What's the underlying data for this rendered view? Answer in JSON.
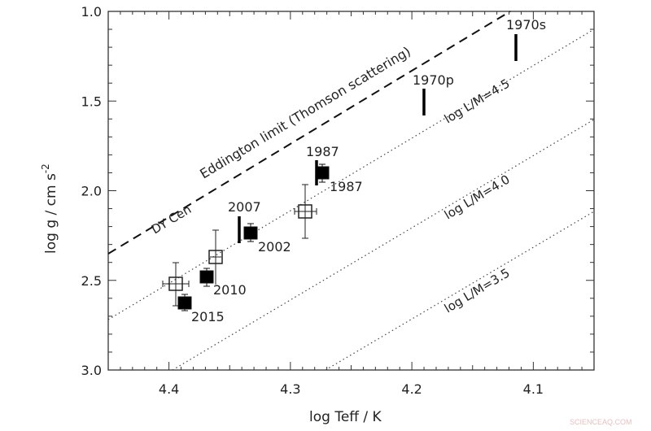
{
  "chart_data": {
    "type": "scatter",
    "title": "",
    "xlabel": "log Teff / K",
    "ylabel": "log g / cm s^-2",
    "ylabel_parts": {
      "main": "log g / cm s",
      "sup": "-2"
    },
    "xlim": [
      4.45,
      4.05
    ],
    "ylim": [
      3.0,
      1.0
    ],
    "x_inverted": true,
    "y_inverted": true,
    "grid": false,
    "x_ticks": [
      4.4,
      4.3,
      4.2,
      4.1
    ],
    "x_tick_labels": [
      "4.4",
      "4.3",
      "4.2",
      "4.1"
    ],
    "y_ticks": [
      1.0,
      1.5,
      2.0,
      2.5,
      3.0
    ],
    "y_tick_labels": [
      "1.0",
      "1.5",
      "2.0",
      "2.5",
      "3.0"
    ],
    "series": [
      {
        "name": "open squares (with error bars)",
        "marker": "open-square",
        "points": [
          {
            "x": 4.395,
            "y": 2.52,
            "y_err": [
              2.4,
              2.64
            ],
            "x_err": [
              4.384,
              4.406
            ]
          },
          {
            "x": 4.362,
            "y": 2.37,
            "y_err": [
              2.22,
              2.52
            ],
            "x_err": null
          },
          {
            "x": 4.289,
            "y": 2.12,
            "y_err": [
              1.97,
              2.26
            ],
            "x_err": [
              4.28,
              4.298
            ]
          }
        ]
      },
      {
        "name": "filled squares (with error bars)",
        "marker": "filled-square",
        "points": [
          {
            "x": 4.387,
            "y": 2.63,
            "y_err": [
              2.58,
              2.67
            ],
            "label": "2015"
          },
          {
            "x": 4.369,
            "y": 2.48,
            "y_err": [
              2.43,
              2.53
            ],
            "label": "2010"
          },
          {
            "x": 4.333,
            "y": 2.24,
            "y_err": [
              2.18,
              2.28
            ],
            "label": "2002"
          },
          {
            "x": 4.275,
            "y": 1.9,
            "y_err": [
              1.85,
              1.96
            ],
            "label": "1987"
          }
        ]
      },
      {
        "name": "thick vertical bars",
        "marker": "vertical-bar",
        "points": [
          {
            "x": 4.343,
            "y_range": [
              2.14,
              2.29
            ],
            "label": "2007"
          },
          {
            "x": 4.279,
            "y_range": [
              1.83,
              1.97
            ],
            "label": "1987"
          },
          {
            "x": 4.191,
            "y_range": [
              1.43,
              1.58
            ],
            "label": "1970p"
          },
          {
            "x": 4.116,
            "y_range": [
              1.13,
              1.28
            ],
            "label": "1970s"
          }
        ]
      }
    ],
    "lines": [
      {
        "name": "Eddington limit (Thomson scattering)",
        "style": "dashed",
        "from": [
          4.45,
          2.35
        ],
        "to": [
          4.121,
          1.0
        ]
      },
      {
        "name": "log L/M=4.5",
        "style": "dotted",
        "from": [
          4.45,
          2.72
        ],
        "to": [
          4.052,
          1.1
        ]
      },
      {
        "name": "log L/M=4.0",
        "style": "dotted",
        "from": [
          4.397,
          3.0
        ],
        "to": [
          4.052,
          1.6
        ]
      },
      {
        "name": "log L/M=3.5",
        "style": "dotted",
        "from": [
          4.272,
          3.0
        ],
        "to": [
          4.052,
          2.12
        ]
      }
    ],
    "annotations": [
      "Eddington limit (Thomson scattering)",
      "DY Cen",
      "log L/M=4.5",
      "log L/M=4.0",
      "log L/M=3.5",
      "1970s",
      "1970p",
      "1987",
      "1987",
      "2007",
      "2002",
      "2010",
      "2015"
    ]
  },
  "labels": {
    "eddington": "Eddington limit (Thomson scattering)",
    "dycen": "DY Cen",
    "lm45": "log L/M=4.5",
    "lm40": "log L/M=4.0",
    "lm35": "log L/M=3.5",
    "y1970s": "1970s",
    "y1970p": "1970p",
    "y1987a": "1987",
    "y1987b": "1987",
    "y2007": "2007",
    "y2002": "2002",
    "y2010": "2010",
    "y2015": "2015"
  },
  "watermark": "SCIENCEAQ.COM"
}
